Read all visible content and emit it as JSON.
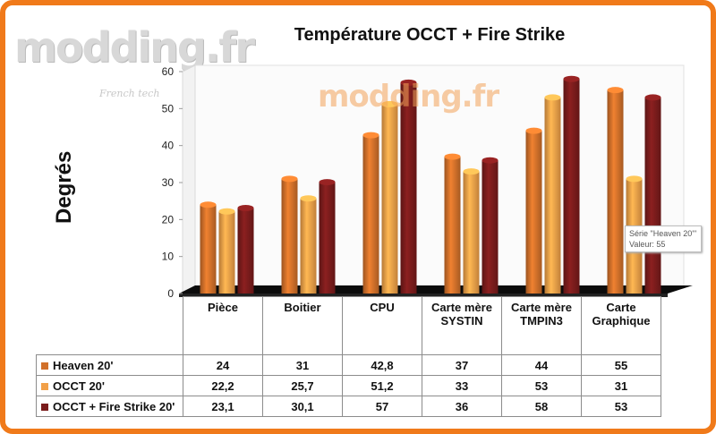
{
  "watermarks": {
    "logo": "modding.fr",
    "logo_tagline": "French tech",
    "center": "modding.fr"
  },
  "tooltip": {
    "line1": "Série \"Heaven 20'\"",
    "line2": "Valeur: 55"
  },
  "colors": {
    "Heaven 20'": "#d1702a",
    "OCCT 20'": "#f2a048",
    "OCCT + Fire Strike 20'": "#7a1c1c",
    "frame": "#f07a1a"
  },
  "chart_data": {
    "type": "bar",
    "title": "Température OCCT + Fire Strike",
    "ylabel": "Degrés",
    "xlabel": "",
    "ylim": [
      0,
      60
    ],
    "yticks": [
      0,
      10,
      20,
      30,
      40,
      50,
      60
    ],
    "grid": false,
    "legend": "table-below",
    "categories": [
      "Pièce",
      "Boitier",
      "CPU",
      "Carte mère SYSTIN",
      "Carte mère TMPIN3",
      "Carte Graphique"
    ],
    "series": [
      {
        "name": "Heaven 20'",
        "values": [
          24,
          31,
          42.8,
          37,
          44,
          55
        ],
        "labels": [
          "24",
          "31",
          "42,8",
          "37",
          "44",
          "55"
        ]
      },
      {
        "name": "OCCT 20'",
        "values": [
          22.2,
          25.7,
          51.2,
          33,
          53,
          31
        ],
        "labels": [
          "22,2",
          "25,7",
          "51,2",
          "33",
          "53",
          "31"
        ]
      },
      {
        "name": "OCCT + Fire Strike 20'",
        "values": [
          23.1,
          30.1,
          57,
          36,
          58,
          53
        ],
        "labels": [
          "23,1",
          "30,1",
          "57",
          "36",
          "58",
          "53"
        ]
      }
    ]
  }
}
